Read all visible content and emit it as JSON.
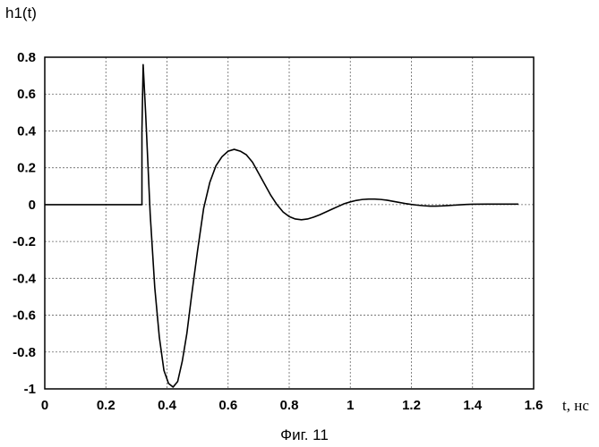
{
  "chart_data": {
    "type": "line",
    "ylabel": "h1(t)",
    "xlabel": "t, нс",
    "caption": "Фиг. 11",
    "xlim": [
      0,
      1.6
    ],
    "ylim": [
      -1,
      0.8
    ],
    "x_ticks": [
      "0",
      "0.2",
      "0.4",
      "0.6",
      "0.8",
      "1",
      "1.2",
      "1.4",
      "1.6"
    ],
    "y_ticks": [
      "0.8",
      "0.6",
      "0.4",
      "0.2",
      "0",
      "-0.2",
      "-0.4",
      "-0.6",
      "-0.8",
      "-1"
    ],
    "grid": true,
    "series": [
      {
        "color": "#000000",
        "x": [
          0,
          0.1,
          0.2,
          0.3,
          0.318,
          0.318,
          0.322,
          0.33,
          0.345,
          0.36,
          0.375,
          0.39,
          0.405,
          0.42,
          0.435,
          0.45,
          0.465,
          0.48,
          0.5,
          0.52,
          0.54,
          0.56,
          0.58,
          0.6,
          0.62,
          0.64,
          0.66,
          0.68,
          0.7,
          0.72,
          0.74,
          0.76,
          0.78,
          0.8,
          0.82,
          0.84,
          0.86,
          0.88,
          0.9,
          0.92,
          0.94,
          0.96,
          0.98,
          1.0,
          1.02,
          1.04,
          1.06,
          1.08,
          1.1,
          1.12,
          1.14,
          1.16,
          1.18,
          1.2,
          1.22,
          1.24,
          1.26,
          1.28,
          1.3,
          1.32,
          1.34,
          1.36,
          1.38,
          1.4,
          1.45,
          1.5,
          1.55
        ],
        "y": [
          0,
          0,
          0,
          0,
          0,
          0.4,
          0.76,
          0.5,
          -0.05,
          -0.45,
          -0.72,
          -0.9,
          -0.97,
          -0.99,
          -0.96,
          -0.85,
          -0.7,
          -0.5,
          -0.25,
          -0.02,
          0.12,
          0.21,
          0.26,
          0.29,
          0.3,
          0.29,
          0.27,
          0.23,
          0.17,
          0.11,
          0.05,
          0.0,
          -0.04,
          -0.065,
          -0.078,
          -0.082,
          -0.078,
          -0.068,
          -0.055,
          -0.04,
          -0.025,
          -0.01,
          0.005,
          0.015,
          0.023,
          0.028,
          0.03,
          0.03,
          0.028,
          0.024,
          0.018,
          0.012,
          0.006,
          0.001,
          -0.003,
          -0.006,
          -0.008,
          -0.008,
          -0.007,
          -0.005,
          -0.003,
          -0.001,
          0.001,
          0.002,
          0.003,
          0.003,
          0.003
        ]
      }
    ]
  }
}
